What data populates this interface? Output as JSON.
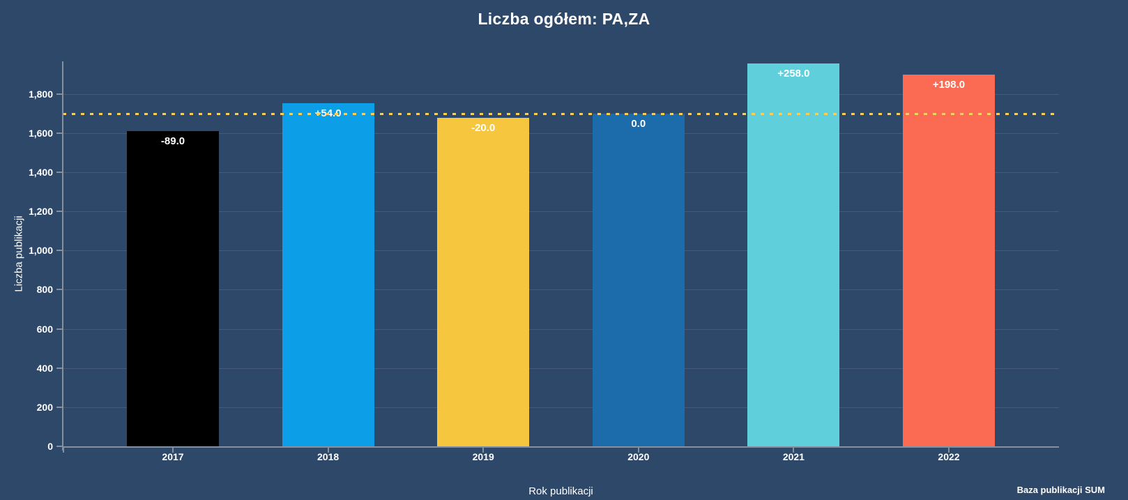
{
  "chart_data": {
    "type": "bar",
    "title": "Liczba ogółem: PA,ZA",
    "xlabel": "Rok publikacji",
    "ylabel": "Liczba publikacji",
    "categories": [
      "2017",
      "2018",
      "2019",
      "2020",
      "2021",
      "2022"
    ],
    "values": [
      1611,
      1754,
      1680,
      1700,
      1958,
      1898
    ],
    "bar_labels": [
      "-89.0",
      "+54.0",
      "-20.0",
      "0.0",
      "+258.0",
      "+198.0"
    ],
    "bar_colors": [
      "#000000",
      "#0C9FE8",
      "#F7C63F",
      "#1C6CAC",
      "#5FD0DB",
      "#FB6A52"
    ],
    "reference_line": {
      "value": 1700,
      "style": "dotted",
      "color": "#F5D05E"
    },
    "ylim": [
      0,
      1967
    ],
    "yticks": [
      0,
      200,
      400,
      600,
      800,
      1000,
      1200,
      1400,
      1600,
      1800
    ],
    "ytick_labels": [
      "0",
      "200",
      "400",
      "600",
      "800",
      "1,000",
      "1,200",
      "1,400",
      "1,600",
      "1,800"
    ],
    "grid": true,
    "legend": false
  },
  "footer": {
    "source_label": "Baza publikacji SUM"
  },
  "colors": {
    "background": "#2E486A",
    "gridline": "#44597B",
    "axis": "#85909E",
    "text": "#FFFFFF"
  }
}
